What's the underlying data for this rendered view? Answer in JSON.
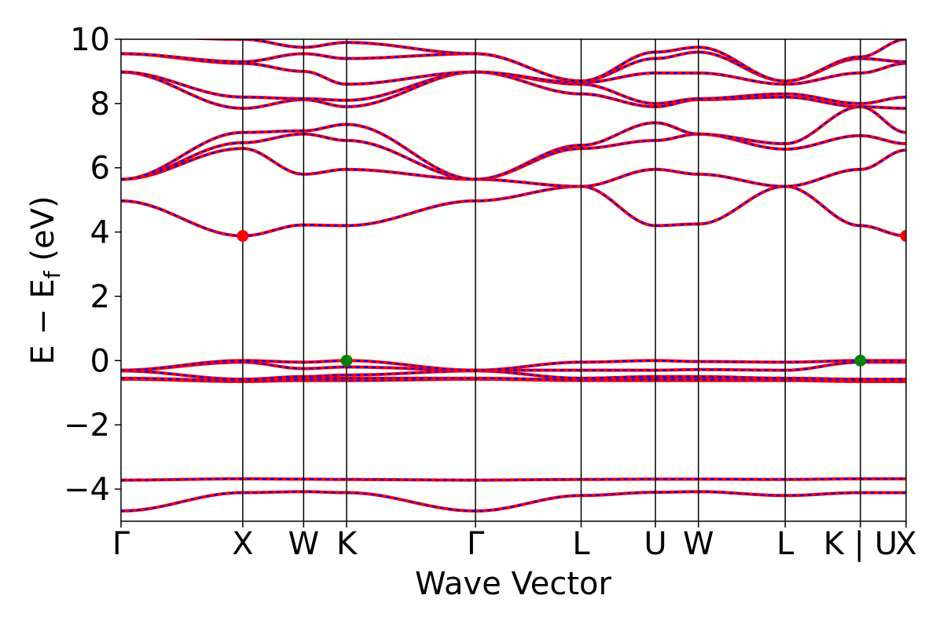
{
  "chart_data": {
    "type": "line",
    "title": "",
    "xlabel": "Wave Vector",
    "ylabel": "E − E_f (eV)",
    "ylabel_parts": {
      "main": "E  −  E",
      "sub": "f",
      "unit": " (eV)"
    },
    "ylim": [
      -5,
      10
    ],
    "yticks": [
      -4,
      -2,
      0,
      2,
      4,
      6,
      8,
      10
    ],
    "ytick_labels": [
      "−4",
      "−2",
      "0",
      "2",
      "4",
      "6",
      "8",
      "10"
    ],
    "xlim": [
      0,
      8.77
    ],
    "kpoints": [
      {
        "label": "Γ",
        "x": 0.0
      },
      {
        "label": "X",
        "x": 1.36
      },
      {
        "label": "W",
        "x": 2.04
      },
      {
        "label": "K",
        "x": 2.52
      },
      {
        "label": "Γ",
        "x": 3.96
      },
      {
        "label": "L",
        "x": 5.14
      },
      {
        "label": "U",
        "x": 5.97
      },
      {
        "label": "W",
        "x": 6.45
      },
      {
        "label": "L",
        "x": 7.42
      },
      {
        "label": "K | U",
        "x": 8.26
      },
      {
        "label": "X",
        "x": 8.77
      }
    ],
    "grid": false,
    "line_style": {
      "color_main": "#ff0000",
      "color_dash": "#0000ff"
    },
    "series": [
      {
        "values": [
          -4.68,
          -4.11,
          -4.08,
          -4.11,
          -4.68,
          -4.2,
          -4.1,
          -4.08,
          -4.2,
          -4.11,
          -4.11
        ]
      },
      {
        "values": [
          -3.72,
          -3.68,
          -3.69,
          -3.7,
          -3.72,
          -3.7,
          -3.69,
          -3.69,
          -3.7,
          -3.68,
          -3.68
        ]
      },
      {
        "values": [
          -0.58,
          -0.65,
          -0.62,
          -0.62,
          -0.58,
          -0.62,
          -0.62,
          -0.62,
          -0.62,
          -0.65,
          -0.65
        ]
      },
      {
        "values": [
          -0.55,
          -0.62,
          -0.58,
          -0.55,
          -0.55,
          -0.6,
          -0.58,
          -0.58,
          -0.6,
          -0.62,
          -0.62
        ]
      },
      {
        "values": [
          -0.32,
          -0.58,
          -0.5,
          -0.45,
          -0.32,
          -0.55,
          -0.5,
          -0.5,
          -0.55,
          -0.58,
          -0.58
        ]
      },
      {
        "values": [
          -0.3,
          -0.05,
          -0.25,
          -0.2,
          -0.3,
          -0.3,
          -0.3,
          -0.28,
          -0.3,
          -0.05,
          -0.05
        ]
      },
      {
        "values": [
          -0.3,
          0.0,
          -0.05,
          0.0,
          -0.3,
          -0.05,
          0.0,
          -0.03,
          -0.05,
          0.0,
          0.0
        ]
      },
      {
        "values": [
          4.97,
          3.88,
          4.22,
          4.2,
          4.97,
          5.42,
          4.2,
          4.25,
          5.42,
          4.2,
          3.88
        ]
      },
      {
        "values": [
          5.64,
          6.6,
          5.8,
          5.95,
          5.64,
          5.42,
          5.95,
          5.8,
          5.42,
          5.95,
          6.55
        ]
      },
      {
        "values": [
          5.64,
          6.78,
          7.05,
          6.85,
          5.64,
          6.6,
          6.85,
          7.05,
          6.58,
          7.0,
          6.75
        ]
      },
      {
        "values": [
          5.64,
          7.1,
          7.15,
          7.35,
          5.64,
          6.7,
          7.4,
          7.05,
          6.75,
          7.9,
          7.1
        ]
      },
      {
        "values": [
          8.98,
          7.85,
          8.12,
          7.9,
          8.98,
          8.3,
          7.9,
          8.12,
          8.2,
          7.9,
          7.85
        ]
      },
      {
        "values": [
          8.98,
          8.2,
          8.15,
          8.1,
          8.98,
          8.6,
          8.0,
          8.15,
          8.3,
          8.0,
          8.2
        ]
      },
      {
        "values": [
          9.55,
          9.25,
          9.0,
          8.6,
          8.98,
          8.65,
          8.95,
          8.95,
          8.6,
          8.95,
          9.25
        ]
      },
      {
        "values": [
          9.55,
          9.3,
          9.55,
          9.4,
          9.55,
          8.7,
          9.4,
          9.6,
          8.7,
          9.4,
          9.3
        ]
      },
      {
        "values": [
          10.1,
          10.0,
          9.75,
          9.9,
          9.55,
          8.7,
          9.6,
          9.75,
          8.7,
          9.45,
          10.0
        ]
      }
    ],
    "highlight_points": [
      {
        "x": 1.36,
        "y": 3.88,
        "color": "#ff0000"
      },
      {
        "x": 8.77,
        "y": 3.88,
        "color": "#ff0000"
      },
      {
        "x": 2.52,
        "y": 0.0,
        "color": "#008000"
      },
      {
        "x": 8.26,
        "y": 0.0,
        "color": "#008000"
      }
    ]
  }
}
